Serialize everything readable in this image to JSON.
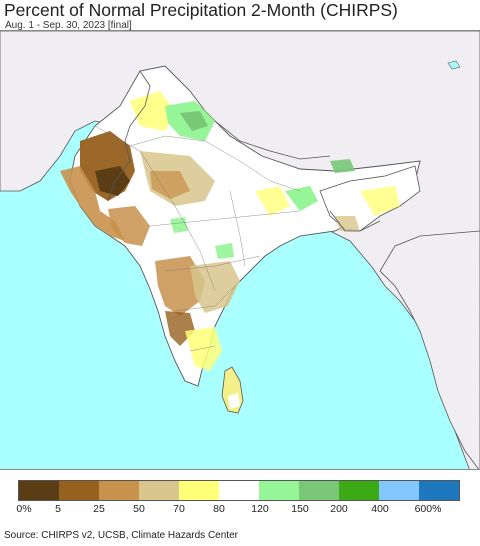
{
  "header": {
    "title": "Percent of Normal Precipitation 2-Month (CHIRPS)",
    "subtitle": "Aug. 1 - Sep. 30, 2023 [final]"
  },
  "colors": {
    "ocean": "#aaffff",
    "land_outside": "#f0eef2",
    "border": "#555555"
  },
  "legend": {
    "swatches": [
      {
        "color": "#5a3d14"
      },
      {
        "color": "#96601e"
      },
      {
        "color": "#c8914c"
      },
      {
        "color": "#d8c68c"
      },
      {
        "color": "#ffff78"
      },
      {
        "color": "#ffffff"
      },
      {
        "color": "#96f596"
      },
      {
        "color": "#78c878"
      },
      {
        "color": "#3caa14"
      },
      {
        "color": "#82c8ff"
      },
      {
        "color": "#1e78be"
      }
    ],
    "labels": [
      "0%",
      "5",
      "25",
      "50",
      "70",
      "80",
      "120",
      "150",
      "200",
      "400",
      "600%"
    ]
  },
  "footer": {
    "source": "Source: CHIRPS v2, UCSB, Climate Hazards Center"
  }
}
